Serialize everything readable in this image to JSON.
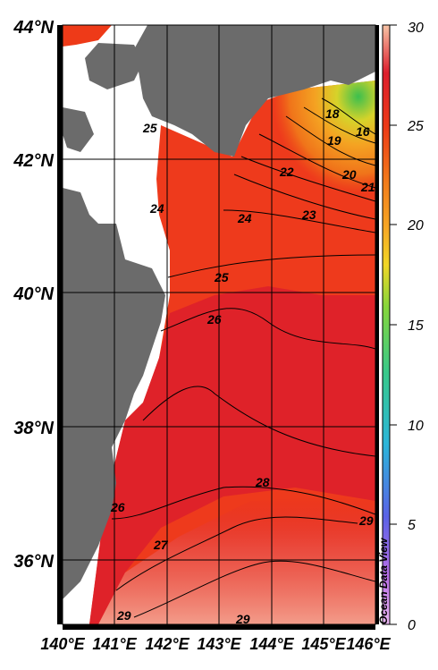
{
  "map": {
    "lat_labels": [
      "44°N",
      "42°N",
      "40°N",
      "38°N",
      "36°N"
    ],
    "lon_labels": [
      "140°E",
      "141°E",
      "142°E",
      "143°E",
      "144°E",
      "145°E",
      "146°E"
    ],
    "extent": {
      "lon": [
        140,
        146
      ],
      "lat": [
        35,
        44
      ]
    }
  },
  "contour_labels": [
    "16",
    "18",
    "19",
    "20",
    "21",
    "22",
    "23",
    "24",
    "25",
    "25",
    "26",
    "26",
    "27",
    "28",
    "29",
    "29",
    "29",
    "24"
  ],
  "colorbar": {
    "ticks": [
      "30",
      "25",
      "20",
      "15",
      "10",
      "5",
      "0"
    ],
    "range": [
      0,
      30
    ],
    "colors": [
      "#d99be8",
      "#b060e0",
      "#4f6ee6",
      "#2ab4d8",
      "#3ec97c",
      "#7fd23a",
      "#e8d02a",
      "#f5a623",
      "#f27a1a",
      "#ee3b18",
      "#dc1f2c",
      "#f4a8a0"
    ]
  },
  "credit": "Ocean Data View",
  "colors": {
    "land": "#6b6b6b",
    "grid": "#000000",
    "frame": "#000000"
  }
}
